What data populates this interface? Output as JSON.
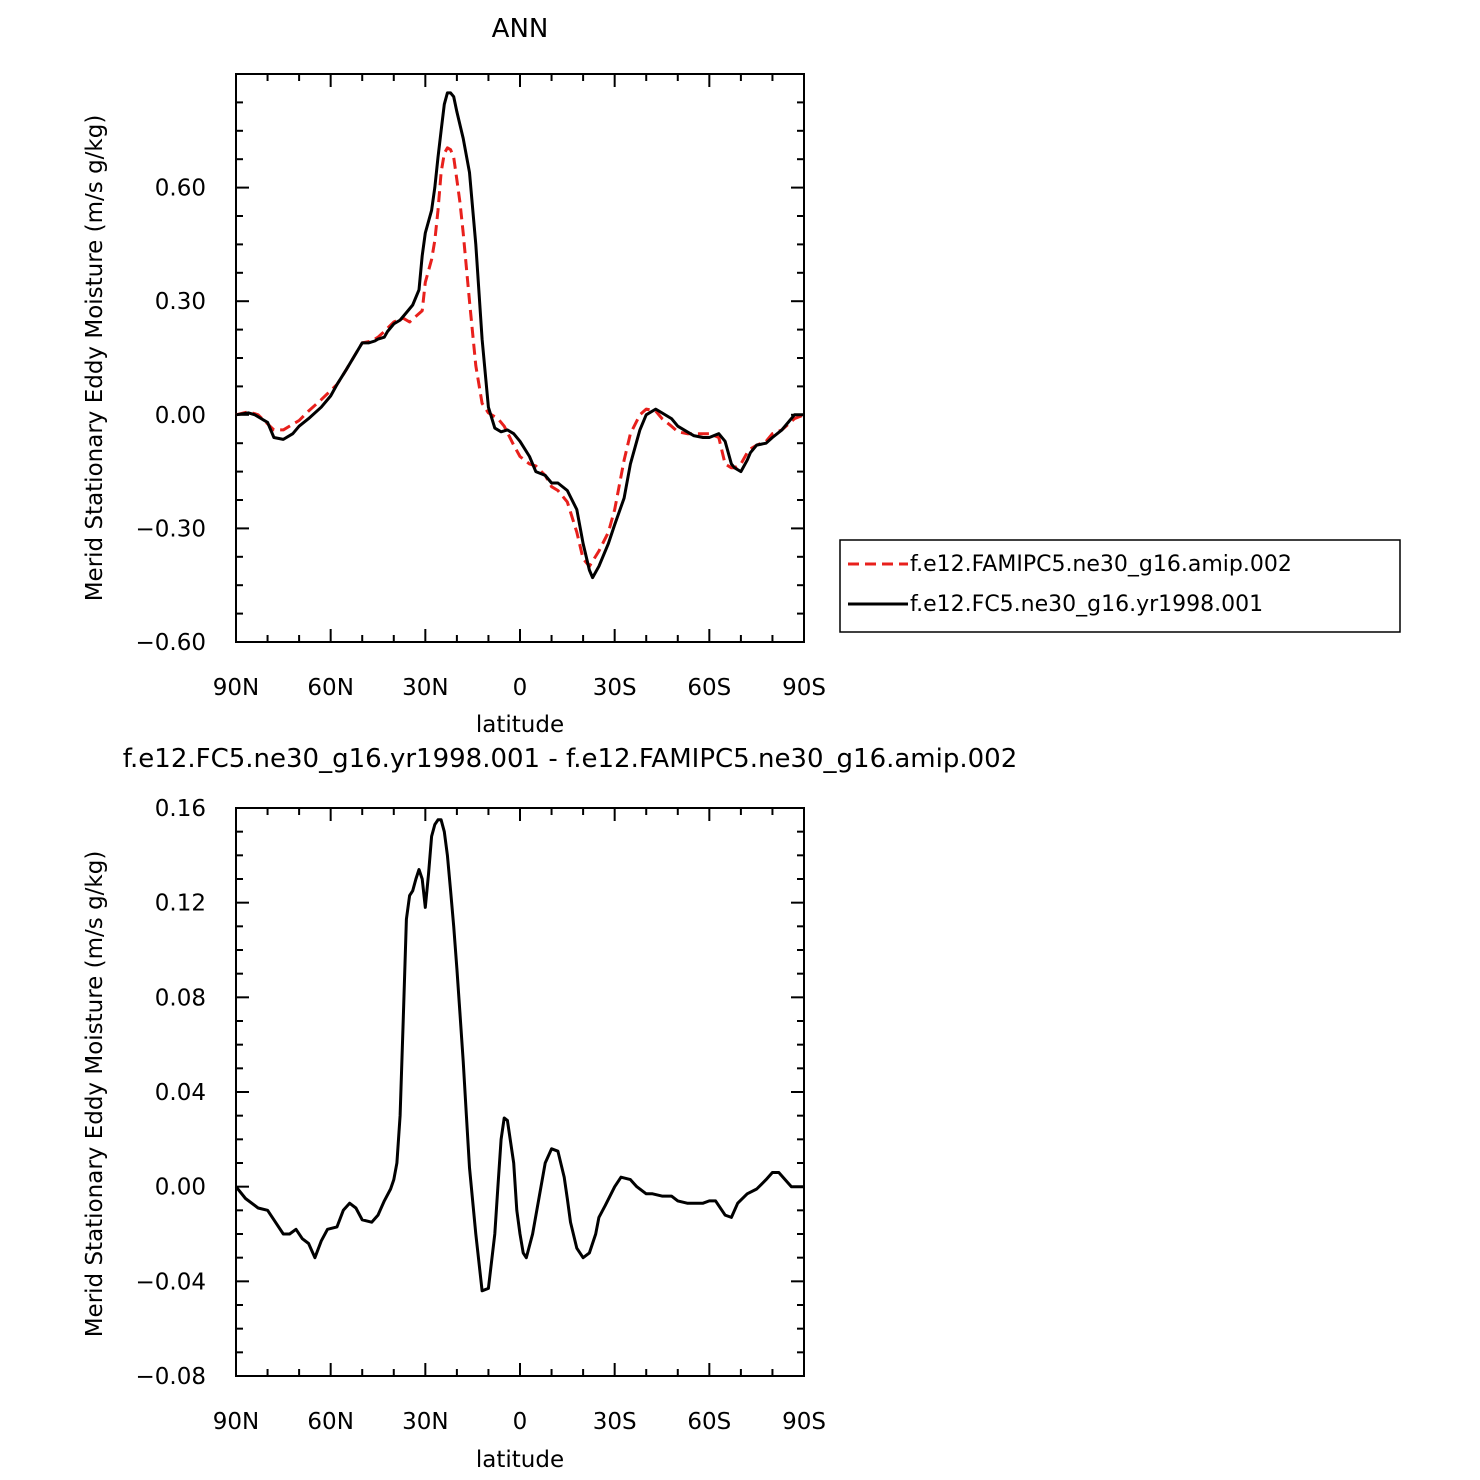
{
  "chart_data": [
    {
      "type": "line",
      "title": "ANN",
      "xlabel": "latitude",
      "ylabel": "Merid Stationary Eddy Moisture (m/s g/kg)",
      "xlim": [
        90,
        -90
      ],
      "ylim": [
        -0.6,
        0.9
      ],
      "xticks": [
        {
          "value": 90,
          "label": "90N"
        },
        {
          "value": 60,
          "label": "60N"
        },
        {
          "value": 30,
          "label": "30N"
        },
        {
          "value": 0,
          "label": "0"
        },
        {
          "value": -30,
          "label": "30S"
        },
        {
          "value": -60,
          "label": "60S"
        },
        {
          "value": -90,
          "label": "90S"
        }
      ],
      "yticks": [
        {
          "value": -0.6,
          "label": "−0.60"
        },
        {
          "value": -0.3,
          "label": "−0.30"
        },
        {
          "value": 0.0,
          "label": "0.00"
        },
        {
          "value": 0.3,
          "label": "0.30"
        },
        {
          "value": 0.6,
          "label": "0.60"
        }
      ],
      "legend": "right",
      "series": [
        {
          "name": "f.e12.FAMIPC5.ne30_g16.amip.002",
          "color": "#e8201c",
          "dash": "dashed",
          "x": [
            90,
            86,
            83,
            78,
            75,
            70,
            67,
            63,
            58,
            55,
            50,
            47,
            45,
            43,
            40,
            37,
            35,
            33,
            31,
            30,
            28,
            27,
            26,
            25,
            24,
            23,
            22,
            21,
            20,
            19,
            18,
            16,
            14,
            12,
            10,
            7,
            5,
            2,
            0,
            -3,
            -5,
            -8,
            -10,
            -12,
            -15,
            -18,
            -20,
            -22,
            -25,
            -28,
            -30,
            -33,
            -35,
            -38,
            -40,
            -43,
            -45,
            -48,
            -50,
            -53,
            -55,
            -58,
            -60,
            -63,
            -65,
            -67,
            -68,
            -70,
            -72,
            -73,
            -75,
            -78,
            -80,
            -83,
            -85,
            -87,
            -90
          ],
          "y": [
            0.0,
            0.008,
            0.0,
            -0.04,
            -0.04,
            -0.015,
            0.01,
            0.04,
            0.08,
            0.12,
            0.19,
            0.195,
            0.205,
            0.22,
            0.245,
            0.255,
            0.245,
            0.26,
            0.275,
            0.35,
            0.41,
            0.46,
            0.54,
            0.64,
            0.69,
            0.705,
            0.7,
            0.68,
            0.62,
            0.56,
            0.48,
            0.3,
            0.13,
            0.03,
            0.005,
            -0.01,
            -0.03,
            -0.08,
            -0.11,
            -0.13,
            -0.135,
            -0.16,
            -0.19,
            -0.2,
            -0.23,
            -0.31,
            -0.38,
            -0.4,
            -0.36,
            -0.31,
            -0.25,
            -0.12,
            -0.05,
            0.0,
            0.015,
            0.01,
            -0.01,
            -0.03,
            -0.045,
            -0.05,
            -0.05,
            -0.05,
            -0.05,
            -0.06,
            -0.13,
            -0.14,
            -0.14,
            -0.13,
            -0.1,
            -0.09,
            -0.08,
            -0.07,
            -0.05,
            -0.04,
            -0.025,
            -0.01,
            0.0
          ]
        },
        {
          "name": "f.e12.FC5.ne30_g16.yr1998.001",
          "color": "#000000",
          "dash": "solid",
          "x": [
            90,
            86,
            84,
            82,
            80,
            78,
            75,
            72,
            70,
            67,
            63,
            60,
            58,
            55,
            50,
            48,
            46,
            45,
            43,
            42,
            40,
            38,
            36,
            34,
            32,
            31,
            30,
            28,
            27,
            26,
            25,
            24,
            23,
            22,
            21,
            20,
            18,
            16,
            14,
            12,
            10,
            8,
            6,
            4,
            2,
            0,
            -3,
            -5,
            -8,
            -10,
            -12,
            -15,
            -18,
            -20,
            -22,
            -23,
            -25,
            -28,
            -30,
            -33,
            -35,
            -38,
            -40,
            -43,
            -45,
            -48,
            -50,
            -53,
            -55,
            -58,
            -60,
            -63,
            -65,
            -67,
            -68,
            -70,
            -72,
            -73,
            -75,
            -78,
            -80,
            -83,
            -85,
            -87,
            -90
          ],
          "y": [
            0.0,
            0.005,
            0.0,
            -0.01,
            -0.02,
            -0.06,
            -0.065,
            -0.05,
            -0.03,
            -0.01,
            0.02,
            0.05,
            0.08,
            0.12,
            0.19,
            0.19,
            0.195,
            0.2,
            0.205,
            0.22,
            0.24,
            0.25,
            0.27,
            0.29,
            0.33,
            0.42,
            0.48,
            0.54,
            0.6,
            0.68,
            0.75,
            0.82,
            0.85,
            0.85,
            0.84,
            0.8,
            0.73,
            0.64,
            0.45,
            0.2,
            0.02,
            -0.035,
            -0.045,
            -0.04,
            -0.05,
            -0.07,
            -0.11,
            -0.15,
            -0.16,
            -0.18,
            -0.18,
            -0.2,
            -0.25,
            -0.34,
            -0.41,
            -0.43,
            -0.4,
            -0.34,
            -0.29,
            -0.22,
            -0.13,
            -0.04,
            0.0,
            0.015,
            0.005,
            -0.01,
            -0.03,
            -0.045,
            -0.055,
            -0.06,
            -0.06,
            -0.05,
            -0.07,
            -0.13,
            -0.14,
            -0.15,
            -0.12,
            -0.1,
            -0.08,
            -0.075,
            -0.06,
            -0.04,
            -0.02,
            0.0,
            0.0
          ]
        }
      ]
    },
    {
      "type": "line",
      "title": "f.e12.FC5.ne30_g16.yr1998.001 - f.e12.FAMIPC5.ne30_g16.amip.002",
      "xlabel": "latitude",
      "ylabel": "Merid Stationary Eddy Moisture (m/s g/kg)",
      "xlim": [
        90,
        -90
      ],
      "ylim": [
        -0.08,
        0.16
      ],
      "xticks": [
        {
          "value": 90,
          "label": "90N"
        },
        {
          "value": 60,
          "label": "60N"
        },
        {
          "value": 30,
          "label": "30N"
        },
        {
          "value": 0,
          "label": "0"
        },
        {
          "value": -30,
          "label": "30S"
        },
        {
          "value": -60,
          "label": "60S"
        },
        {
          "value": -90,
          "label": "90S"
        }
      ],
      "yticks": [
        {
          "value": -0.08,
          "label": "−0.08"
        },
        {
          "value": -0.04,
          "label": "−0.04"
        },
        {
          "value": 0.0,
          "label": "0.00"
        },
        {
          "value": 0.04,
          "label": "0.04"
        },
        {
          "value": 0.08,
          "label": "0.08"
        },
        {
          "value": 0.12,
          "label": "0.12"
        },
        {
          "value": 0.16,
          "label": "0.16"
        }
      ],
      "series": [
        {
          "color": "#000000",
          "dash": "solid",
          "x": [
            90,
            87,
            83,
            80,
            78,
            75,
            73,
            71,
            69,
            67,
            65,
            63,
            61,
            58,
            56,
            54,
            52,
            50,
            47,
            45,
            43,
            41,
            40,
            39,
            38,
            37,
            36,
            35,
            34,
            33,
            32,
            31,
            30,
            29,
            28,
            27,
            26,
            25,
            24,
            23,
            22,
            21,
            20,
            19,
            18,
            17,
            16,
            14,
            12,
            10,
            8,
            7,
            6,
            5,
            4,
            2,
            1,
            0,
            -1,
            -2,
            -4,
            -6,
            -8,
            -10,
            -12,
            -14,
            -15,
            -16,
            -18,
            -20,
            -22,
            -24,
            -25,
            -27,
            -30,
            -32,
            -35,
            -37,
            -40,
            -42,
            -45,
            -48,
            -50,
            -53,
            -55,
            -58,
            -60,
            -62,
            -65,
            -67,
            -69,
            -72,
            -75,
            -78,
            -80,
            -82,
            -84,
            -86,
            -88,
            -90
          ],
          "y": [
            0.0,
            -0.005,
            -0.009,
            -0.01,
            -0.014,
            -0.02,
            -0.02,
            -0.018,
            -0.022,
            -0.024,
            -0.03,
            -0.023,
            -0.018,
            -0.017,
            -0.01,
            -0.007,
            -0.009,
            -0.014,
            -0.015,
            -0.012,
            -0.006,
            -0.001,
            0.003,
            0.01,
            0.03,
            0.07,
            0.113,
            0.123,
            0.125,
            0.13,
            0.134,
            0.13,
            0.118,
            0.132,
            0.148,
            0.153,
            0.155,
            0.155,
            0.15,
            0.14,
            0.125,
            0.11,
            0.092,
            0.073,
            0.053,
            0.03,
            0.008,
            -0.02,
            -0.044,
            -0.043,
            -0.02,
            0.0,
            0.02,
            0.029,
            0.028,
            0.01,
            -0.01,
            -0.02,
            -0.028,
            -0.03,
            -0.02,
            -0.005,
            0.01,
            0.016,
            0.015,
            0.004,
            -0.005,
            -0.015,
            -0.026,
            -0.03,
            -0.028,
            -0.02,
            -0.013,
            -0.008,
            0.0,
            0.004,
            0.003,
            0.0,
            -0.003,
            -0.003,
            -0.004,
            -0.004,
            -0.006,
            -0.007,
            -0.007,
            -0.007,
            -0.006,
            -0.006,
            -0.012,
            -0.013,
            -0.007,
            -0.003,
            -0.001,
            0.003,
            0.006,
            0.006,
            0.003,
            0.0,
            0.0,
            0.0
          ]
        }
      ]
    }
  ]
}
